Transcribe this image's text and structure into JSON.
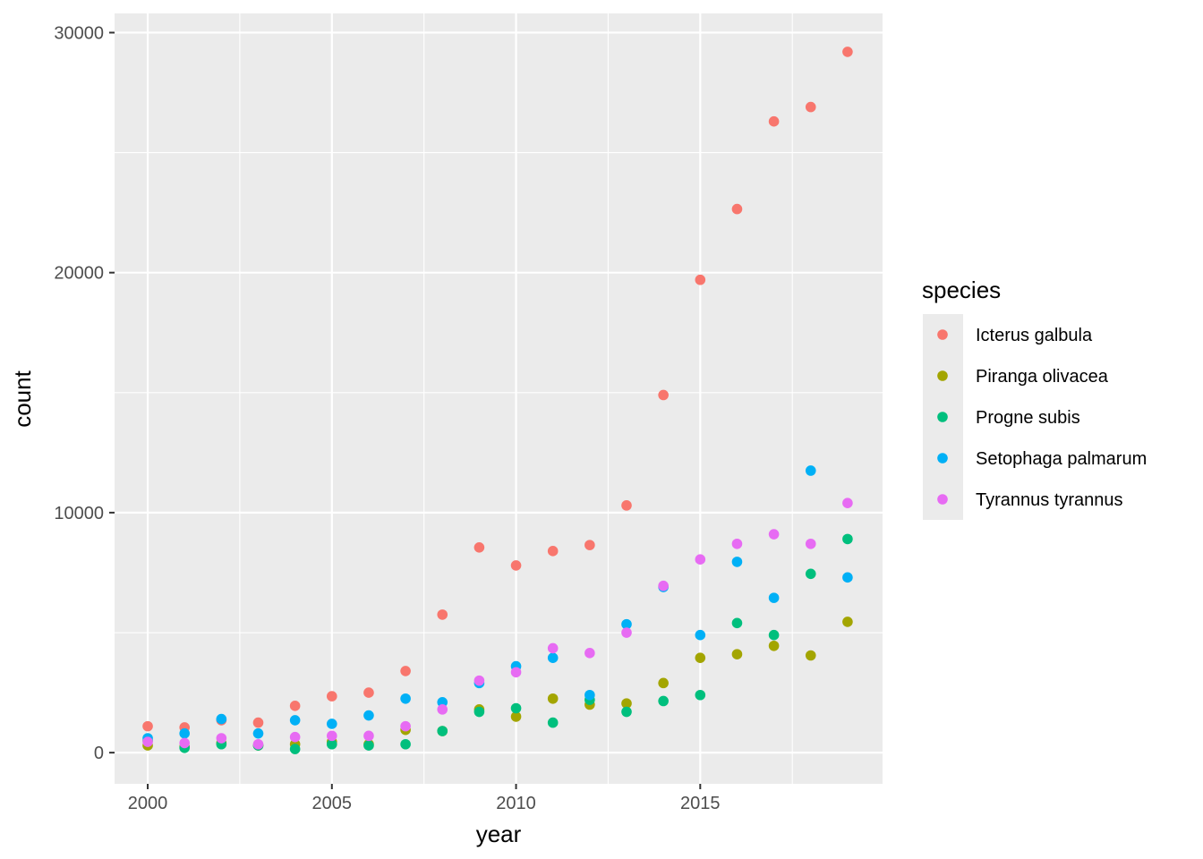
{
  "chart_data": {
    "type": "scatter",
    "xlabel": "year",
    "ylabel": "count",
    "xlim": [
      1999.1,
      2019.95
    ],
    "ylim": [
      -1300,
      30800
    ],
    "x_ticks": [
      2000,
      2005,
      2010,
      2015
    ],
    "y_ticks": [
      0,
      10000,
      20000,
      30000
    ],
    "x_tick_labels": [
      "2000",
      "2005",
      "2010",
      "2015"
    ],
    "y_tick_labels": [
      "0",
      "10000",
      "20000",
      "30000"
    ],
    "grid": true,
    "legend": {
      "title": "species",
      "position": "right"
    },
    "x": [
      2000,
      2001,
      2002,
      2003,
      2004,
      2005,
      2006,
      2007,
      2008,
      2009,
      2010,
      2011,
      2012,
      2013,
      2014,
      2015,
      2016,
      2017,
      2018,
      2019
    ],
    "series": [
      {
        "name": "Icterus galbula",
        "color": "#F8766D",
        "values": [
          1100,
          1050,
          1350,
          1250,
          1950,
          2350,
          2500,
          3400,
          5750,
          8550,
          7800,
          8400,
          8650,
          10300,
          14900,
          19700,
          22650,
          26300,
          26900,
          29200
        ]
      },
      {
        "name": "Piranga olivacea",
        "color": "#A3A500",
        "values": [
          300,
          250,
          400,
          300,
          350,
          450,
          350,
          950,
          900,
          1800,
          1500,
          2250,
          2000,
          2050,
          2900,
          3950,
          4100,
          4450,
          4050,
          5450
        ]
      },
      {
        "name": "Progne subis",
        "color": "#00BF7D",
        "values": [
          500,
          200,
          350,
          300,
          150,
          350,
          300,
          350,
          900,
          1700,
          1850,
          1250,
          2200,
          1700,
          2150,
          2400,
          5400,
          4900,
          7450,
          8900
        ]
      },
      {
        "name": "Setophaga palmarum",
        "color": "#00B0F6",
        "values": [
          600,
          800,
          1400,
          800,
          1350,
          1200,
          1550,
          2250,
          2100,
          2900,
          3600,
          3950,
          2400,
          5350,
          6900,
          4900,
          7950,
          6450,
          11750,
          7300
        ]
      },
      {
        "name": "Tyrannus tyrannus",
        "color": "#E76BF3",
        "values": [
          450,
          400,
          600,
          350,
          650,
          700,
          700,
          1100,
          1800,
          3000,
          3350,
          4350,
          4150,
          5000,
          6950,
          8050,
          8700,
          9100,
          8700,
          10400
        ]
      }
    ]
  },
  "style": {
    "panel_background": "#EBEBEB",
    "grid_color": "#FFFFFF",
    "tick_color": "#333333"
  }
}
